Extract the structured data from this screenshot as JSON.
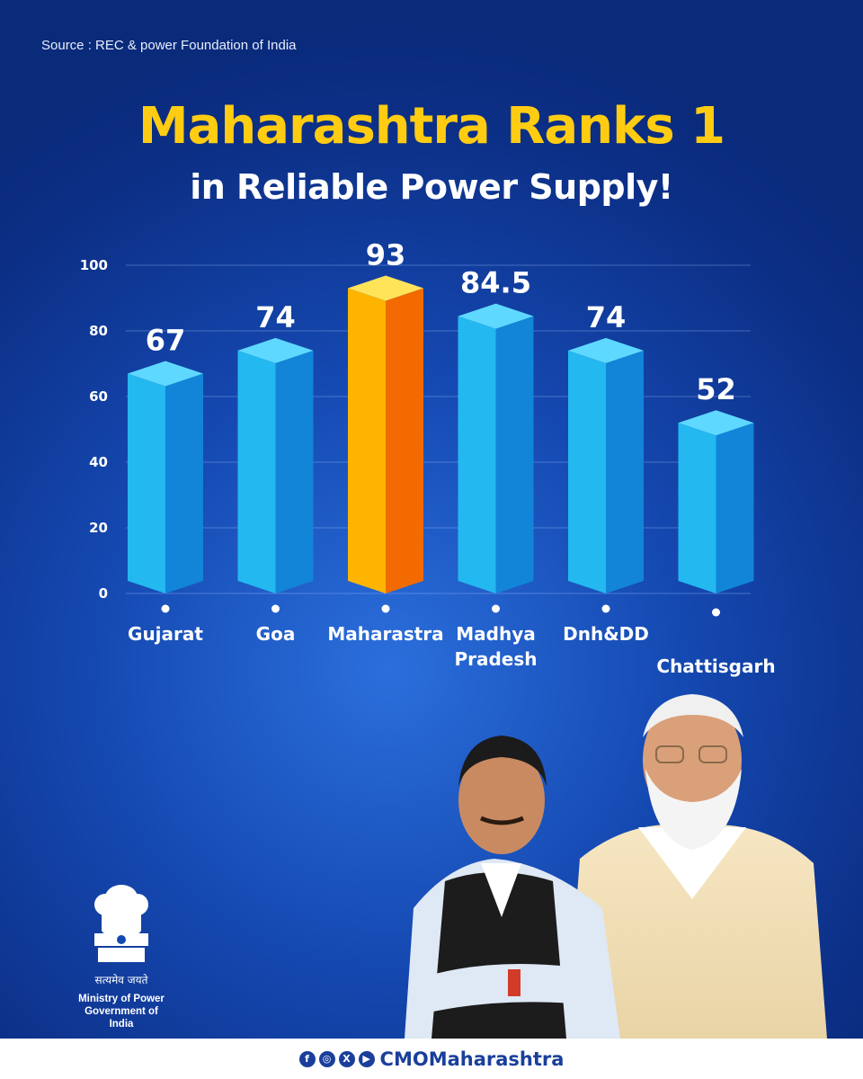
{
  "source": "Source : REC & power Foundation of India",
  "headline": {
    "line1": "Maharashtra Ranks 1",
    "line2": "in Reliable Power Supply!"
  },
  "chart_data": {
    "type": "bar",
    "title": "Maharashtra Ranks 1 in Reliable Power Supply!",
    "xlabel": "",
    "ylabel": "",
    "ylim": [
      0,
      100
    ],
    "yticks": [
      0,
      20,
      40,
      60,
      80,
      100
    ],
    "grid": true,
    "categories": [
      "Gujarat",
      "Goa",
      "Maharastra",
      "Madhya Pradesh",
      "Dnh&DD",
      "Chattisgarh"
    ],
    "category_lines": [
      [
        "Gujarat"
      ],
      [
        "Goa"
      ],
      [
        "Maharastra"
      ],
      [
        "Madhya",
        "Pradesh"
      ],
      [
        "Dnh&DD"
      ],
      [
        "Chattisgarh"
      ]
    ],
    "values": [
      67,
      74,
      93,
      84.5,
      74,
      52
    ],
    "value_labels": [
      "67",
      "74",
      "93",
      "84.5",
      "74",
      "52"
    ],
    "highlight_index": 2,
    "colors": {
      "bar_front": "#23b8f0",
      "bar_side": "#1285d8",
      "bar_top": "#5fd8ff",
      "highlight_front": "#ffb400",
      "highlight_side": "#f26a00",
      "highlight_top": "#ffe45a"
    }
  },
  "emblem": {
    "motto": "सत्यमेव जयते",
    "ministry_line1": "Ministry of Power",
    "ministry_line2": "Government of India"
  },
  "footer": {
    "icons": [
      "facebook-icon",
      "instagram-icon",
      "x-icon",
      "youtube-icon"
    ],
    "handle": "CMOMaharashtra"
  }
}
